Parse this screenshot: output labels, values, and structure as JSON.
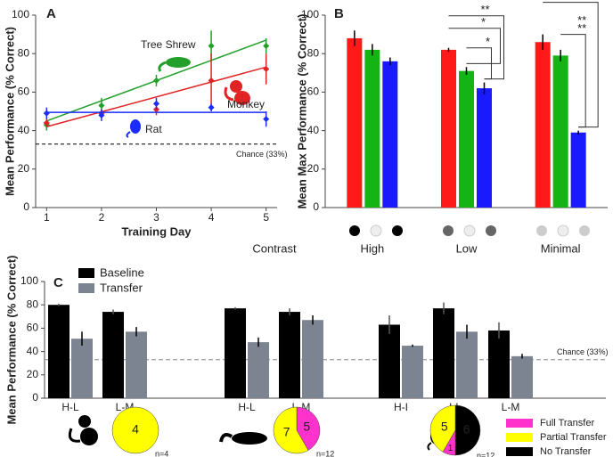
{
  "chart_data": [
    {
      "type": "line",
      "label": "A",
      "xlabel": "Training Day",
      "ylabel": "Mean Performance (% Correct)",
      "x": [
        1,
        2,
        3,
        4,
        5
      ],
      "xlim": [
        0.8,
        5.2
      ],
      "xticks": [
        1,
        2,
        3,
        4,
        5
      ],
      "ylim": [
        0,
        100
      ],
      "yticks": [
        0,
        20,
        40,
        60,
        80,
        100
      ],
      "series": [
        {
          "name": "Tree Shrew",
          "color": "#22a02a",
          "values": [
            43,
            53,
            66,
            84,
            84
          ],
          "errors": [
            3,
            4,
            3,
            8,
            4
          ],
          "fit": [
            45,
            87
          ]
        },
        {
          "name": "Monkey",
          "color": "#e02424",
          "values": [
            44,
            49,
            51,
            66,
            72
          ],
          "errors": [
            2,
            2,
            3,
            14,
            8
          ],
          "fit": [
            42,
            73
          ]
        },
        {
          "name": "Rat",
          "color": "#1a2cff",
          "values": [
            49,
            48,
            54,
            52,
            46
          ],
          "errors": [
            3,
            3,
            3,
            2,
            4
          ],
          "fit": [
            49.5,
            49.5
          ]
        }
      ],
      "chance": 33,
      "chance_label": "Chance (33%)"
    },
    {
      "type": "bar",
      "label": "B",
      "ylabel": "Mean Max Performance (% Correct)",
      "xlabel": "Contrast",
      "categories": [
        "High",
        "Low",
        "Minimal"
      ],
      "ylim": [
        0,
        100
      ],
      "yticks": [
        0,
        20,
        40,
        60,
        80,
        100
      ],
      "series": [
        {
          "color": "#ff1a1a",
          "values": [
            88,
            82,
            86
          ],
          "errors": [
            4,
            1,
            4
          ]
        },
        {
          "color": "#14b414",
          "values": [
            82,
            71,
            79
          ],
          "errors": [
            3,
            2,
            3
          ]
        },
        {
          "color": "#1a1aff",
          "values": [
            76,
            62,
            39
          ],
          "errors": [
            2,
            3,
            1
          ]
        }
      ],
      "sig": [
        {
          "category": 1,
          "from": 0,
          "to": 1,
          "lines": [
            "*"
          ]
        },
        {
          "category": 1,
          "from": 0,
          "to": 2,
          "lines": [
            "**"
          ]
        },
        {
          "category": 1,
          "from": 1,
          "to": 2,
          "lines": [
            "*"
          ]
        },
        {
          "category": 2,
          "from": 0,
          "to": 2,
          "lines": [
            "**",
            "**"
          ]
        },
        {
          "category": 2,
          "from": 1,
          "to": 2,
          "lines": [
            "**",
            "**"
          ]
        }
      ]
    },
    {
      "type": "bar",
      "label": "C",
      "ylabel": "Mean Performance (% Correct)",
      "categories": [
        "H-L",
        "L-M",
        "H-L",
        "L-M",
        "H-I",
        "I-L",
        "L-M"
      ],
      "ylim": [
        0,
        100
      ],
      "yticks": [
        0,
        20,
        40,
        60,
        80,
        100
      ],
      "series": [
        {
          "name": "Baseline",
          "color": "#000000",
          "values": [
            80,
            74,
            77,
            74,
            63,
            77,
            58
          ],
          "errors": [
            1,
            2,
            1,
            3,
            8,
            5,
            7
          ]
        },
        {
          "name": "Transfer",
          "color": "#7d8491",
          "values": [
            51,
            57,
            48,
            67,
            45,
            57,
            36
          ],
          "errors": [
            6,
            4,
            4,
            4,
            1,
            6,
            2
          ]
        }
      ],
      "chance": 33,
      "chance_label": "Chance (33%)",
      "pie_legend": {
        "names": [
          "Full Transfer",
          "Partial Transfer",
          "No Transfer"
        ],
        "colors": [
          "#ff33cc",
          "#ffff00",
          "#000000"
        ]
      },
      "pies": [
        {
          "slices": [
            {
              "value": 4,
              "color": "#ffff00"
            }
          ],
          "n_label": "n=4"
        },
        {
          "slices": [
            {
              "value": 5,
              "color": "#ff33cc"
            },
            {
              "value": 7,
              "color": "#ffff00"
            }
          ],
          "n_label": "n=12"
        },
        {
          "slices": [
            {
              "value": 6,
              "color": "#000000"
            },
            {
              "value": 1,
              "color": "#ff33cc"
            },
            {
              "value": 5,
              "color": "#ffff00"
            }
          ],
          "n_label": "n=12"
        }
      ]
    }
  ]
}
